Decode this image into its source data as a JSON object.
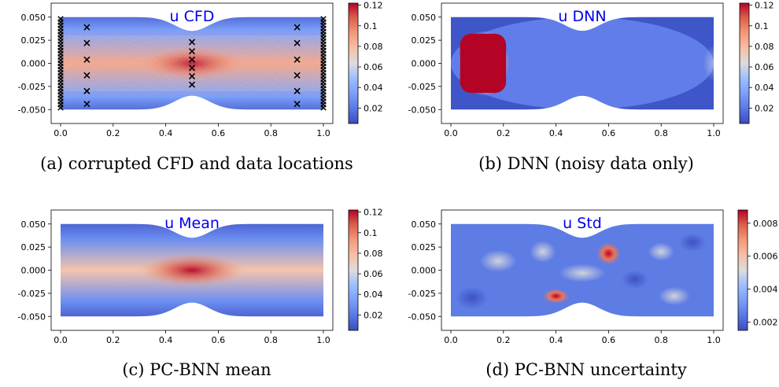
{
  "chart_data": [
    {
      "type": "heatmap",
      "title": "u CFD",
      "caption": "(a) corrupted CFD and data locations",
      "xlim": [
        0.0,
        1.0
      ],
      "ylim": [
        -0.06,
        0.06
      ],
      "x_ticks": [
        0.0,
        0.2,
        0.4,
        0.6,
        0.8,
        1.0
      ],
      "y_ticks": [
        -0.05,
        -0.025,
        0.0,
        0.025,
        0.05
      ],
      "colorbar_range": [
        0.005,
        0.122
      ],
      "colorbar_ticks": [
        0.02,
        0.04,
        0.06,
        0.08,
        0.1,
        0.12
      ],
      "field": "parabolic profile with added noise, peak at throat",
      "markers": [
        {
          "x": 0.1,
          "y": 0.039
        },
        {
          "x": 0.1,
          "y": 0.022
        },
        {
          "x": 0.1,
          "y": 0.004
        },
        {
          "x": 0.1,
          "y": -0.013
        },
        {
          "x": 0.1,
          "y": -0.03
        },
        {
          "x": 0.1,
          "y": -0.044
        },
        {
          "x": 0.5,
          "y": 0.023
        },
        {
          "x": 0.5,
          "y": 0.013
        },
        {
          "x": 0.5,
          "y": 0.004
        },
        {
          "x": 0.5,
          "y": -0.005
        },
        {
          "x": 0.5,
          "y": -0.014
        },
        {
          "x": 0.5,
          "y": -0.023
        },
        {
          "x": 0.9,
          "y": 0.039
        },
        {
          "x": 0.9,
          "y": 0.022
        },
        {
          "x": 0.9,
          "y": 0.004
        },
        {
          "x": 0.9,
          "y": -0.013
        },
        {
          "x": 0.9,
          "y": -0.03
        },
        {
          "x": 0.9,
          "y": -0.044
        }
      ]
    },
    {
      "type": "heatmap",
      "title": "u DNN",
      "caption": "(b) DNN (noisy data only)",
      "xlim": [
        0.0,
        1.0
      ],
      "ylim": [
        -0.06,
        0.06
      ],
      "x_ticks": [
        0.0,
        0.2,
        0.4,
        0.6,
        0.8,
        1.0
      ],
      "y_ticks": [
        -0.05,
        -0.025,
        0.0,
        0.025,
        0.05
      ],
      "colorbar_range": [
        0.005,
        0.122
      ],
      "colorbar_ticks": [
        0.02,
        0.04,
        0.06,
        0.08,
        0.1,
        0.12
      ],
      "field": "high-value blob near inlet, low elsewhere"
    },
    {
      "type": "heatmap",
      "title": "u Mean",
      "caption": "(c) PC-BNN mean",
      "xlim": [
        0.0,
        1.0
      ],
      "ylim": [
        -0.06,
        0.06
      ],
      "x_ticks": [
        0.0,
        0.2,
        0.4,
        0.6,
        0.8,
        1.0
      ],
      "y_ticks": [
        -0.05,
        -0.025,
        0.0,
        0.025,
        0.05
      ],
      "colorbar_range": [
        0.005,
        0.122
      ],
      "colorbar_ticks": [
        0.02,
        0.04,
        0.06,
        0.08,
        0.1,
        0.12
      ],
      "field": "smooth parabolic profile, peak at throat"
    },
    {
      "type": "heatmap",
      "title": "u Std",
      "caption": "(d) PC-BNN uncertainty",
      "xlim": [
        0.0,
        1.0
      ],
      "ylim": [
        -0.06,
        0.06
      ],
      "x_ticks": [
        0.0,
        0.2,
        0.4,
        0.6,
        0.8,
        1.0
      ],
      "y_ticks": [
        -0.05,
        -0.025,
        0.0,
        0.025,
        0.05
      ],
      "colorbar_range": [
        0.0015,
        0.0088
      ],
      "colorbar_ticks": [
        0.002,
        0.004,
        0.006,
        0.008
      ],
      "field": "low background with hot spots near (0.6, 0.018) and (0.4, -0.028)"
    }
  ]
}
